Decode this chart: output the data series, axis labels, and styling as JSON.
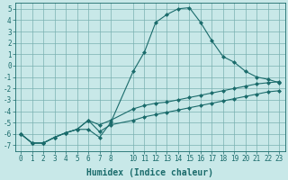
{
  "xlabel": "Humidex (Indice chaleur)",
  "background_color": "#c8e8e8",
  "grid_color": "#7ab0b0",
  "line_color": "#1a6b6b",
  "x_values": [
    0,
    1,
    2,
    3,
    4,
    5,
    6,
    7,
    8,
    10,
    11,
    12,
    13,
    14,
    15,
    16,
    17,
    18,
    19,
    20,
    21,
    22,
    23
  ],
  "line1_y": [
    -6.0,
    -6.8,
    -6.8,
    -6.3,
    -5.9,
    -5.6,
    -5.6,
    -6.3,
    -5.0,
    -0.5,
    1.2,
    3.8,
    4.5,
    5.0,
    5.1,
    3.8,
    2.2,
    0.8,
    0.3,
    -0.5,
    -1.0,
    -1.2,
    -1.5
  ],
  "line2_y": [
    -6.0,
    -6.8,
    -6.8,
    -6.3,
    -5.9,
    -5.6,
    -4.8,
    -5.2,
    -4.8,
    -3.8,
    -3.5,
    -3.3,
    -3.2,
    -3.0,
    -2.8,
    -2.6,
    -2.4,
    -2.2,
    -2.0,
    -1.8,
    -1.6,
    -1.5,
    -1.4
  ],
  "line3_y": [
    -6.0,
    -6.8,
    -6.8,
    -6.3,
    -5.9,
    -5.6,
    -4.8,
    -5.8,
    -5.2,
    -4.8,
    -4.5,
    -4.3,
    -4.1,
    -3.9,
    -3.7,
    -3.5,
    -3.3,
    -3.1,
    -2.9,
    -2.7,
    -2.5,
    -2.3,
    -2.2
  ],
  "ylim": [
    -7.5,
    5.5
  ],
  "yticks": [
    -7,
    -6,
    -5,
    -4,
    -3,
    -2,
    -1,
    0,
    1,
    2,
    3,
    4,
    5
  ],
  "xticks": [
    0,
    1,
    2,
    3,
    4,
    5,
    6,
    7,
    8,
    10,
    11,
    12,
    13,
    14,
    15,
    16,
    17,
    18,
    19,
    20,
    21,
    22,
    23
  ],
  "marker": "D",
  "markersize": 2.0,
  "linewidth": 0.8,
  "xlabel_fontsize": 7,
  "tick_fontsize": 5.5
}
